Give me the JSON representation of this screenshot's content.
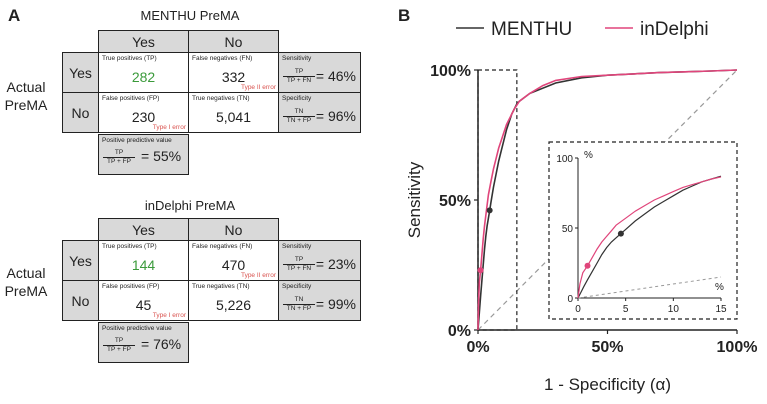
{
  "panel_a": {
    "letter": "A",
    "matrices": [
      {
        "title": "MENTHU PreMA",
        "col_yes": "Yes",
        "col_no": "No",
        "row_label": "Actual PreMA",
        "row_yes": "Yes",
        "row_no": "No",
        "tp_label": "True positives (TP)",
        "tp_value": "282",
        "fn_label": "False negatives (FN)",
        "fn_value": "332",
        "fn_error": "Type II error",
        "fp_label": "False positives (FP)",
        "fp_value": "230",
        "fp_error": "Type I error",
        "tn_label": "True negatives (TN)",
        "tn_value": "5,041",
        "sens_label": "Sensitivity",
        "sens_num": "TP",
        "sens_den": "TP + FN",
        "sens_value": "= 46%",
        "spec_label": "Specificity",
        "spec_num": "TN",
        "spec_den": "TN + FP",
        "spec_value": "= 96%",
        "ppv_label": "Positive predictive value",
        "ppv_num": "TP",
        "ppv_den": "TP + FP",
        "ppv_value": "= 55%"
      },
      {
        "title": "inDelphi PreMA",
        "col_yes": "Yes",
        "col_no": "No",
        "row_label": "Actual PreMA",
        "row_yes": "Yes",
        "row_no": "No",
        "tp_label": "True positives (TP)",
        "tp_value": "144",
        "fn_label": "False negatives (FN)",
        "fn_value": "470",
        "fn_error": "Type II error",
        "fp_label": "False positives (FP)",
        "fp_value": "45",
        "fp_error": "Type I error",
        "tn_label": "True negatives (TN)",
        "tn_value": "5,226",
        "sens_label": "Sensitivity",
        "sens_num": "TP",
        "sens_den": "TP + FN",
        "sens_value": "= 23%",
        "spec_label": "Specificity",
        "spec_num": "TN",
        "spec_den": "TN + FP",
        "spec_value": "= 99%",
        "ppv_label": "Positive predictive value",
        "ppv_num": "TP",
        "ppv_den": "TP + FP",
        "ppv_value": "= 76%"
      }
    ]
  },
  "chart_data": {
    "type": "line",
    "panel_letter": "B",
    "xlabel": "1 - Specificity (α)",
    "ylabel": "Sensitivity",
    "xlim": [
      0,
      100
    ],
    "ylim": [
      0,
      100
    ],
    "x_ticks": [
      "0%",
      "50%",
      "100%"
    ],
    "y_ticks": [
      "0%",
      "50%",
      "100%"
    ],
    "legend_position": "top",
    "grid": false,
    "colors": {
      "MENTHU": "#333333",
      "inDelphi": "#e0457b",
      "diagonal": "#999999"
    },
    "series": [
      {
        "name": "MENTHU",
        "x": [
          0,
          0.3,
          0.6,
          1,
          1.5,
          2,
          2.5,
          3,
          3.5,
          4,
          4.5,
          5,
          6,
          7,
          8,
          9,
          10,
          11,
          12,
          13,
          14,
          15,
          16,
          20,
          30,
          40,
          50,
          60,
          70,
          80,
          90,
          100
        ],
        "y": [
          0,
          4,
          8,
          13,
          19,
          25,
          31,
          36,
          40,
          43,
          46,
          49,
          55,
          60,
          65,
          69,
          73,
          77,
          80,
          83,
          85,
          87,
          88,
          91,
          95,
          97,
          98,
          98.5,
          99,
          99.3,
          99.6,
          100
        ]
      },
      {
        "name": "inDelphi",
        "x": [
          0,
          0.2,
          0.5,
          1,
          1.5,
          2,
          2.5,
          3,
          3.5,
          4,
          5,
          6,
          7,
          8,
          9,
          10,
          11,
          12,
          13,
          14,
          15,
          16,
          20,
          25,
          30,
          40,
          50,
          60,
          70,
          80,
          90,
          100
        ],
        "y": [
          0,
          10,
          18,
          23,
          29,
          35,
          40,
          44,
          48,
          52,
          57,
          62,
          66,
          70,
          73,
          76,
          79,
          81,
          83,
          85,
          86.5,
          88,
          91,
          94,
          96,
          97.5,
          98,
          98.5,
          99,
          99.3,
          99.6,
          100
        ]
      }
    ],
    "points": [
      {
        "series": "MENTHU",
        "x": 4.5,
        "y": 46
      },
      {
        "series": "inDelphi",
        "x": 1,
        "y": 23
      }
    ],
    "zoom_region": {
      "xlim": [
        0,
        15
      ],
      "ylim": [
        0,
        100
      ]
    },
    "inset": {
      "xlim": [
        0,
        15
      ],
      "ylim": [
        0,
        100
      ],
      "x_ticks": [
        "0",
        "5",
        "10",
        "15"
      ],
      "y_ticks": [
        "0",
        "50",
        "100"
      ],
      "x_unit": "%",
      "y_unit": "%"
    }
  }
}
